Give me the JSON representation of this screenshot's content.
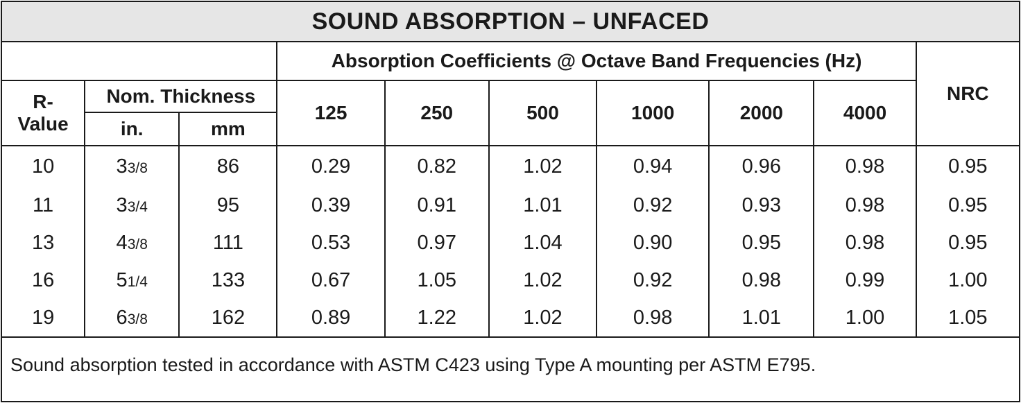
{
  "title": "SOUND ABSORPTION – UNFACED",
  "header": {
    "absorption_group": "Absorption Coefficients @ Octave Band Frequencies (Hz)",
    "r_value": [
      "R-",
      "Value"
    ],
    "nom_thickness": "Nom. Thickness",
    "in": "in.",
    "mm": "mm",
    "frequencies": [
      "125",
      "250",
      "500",
      "1000",
      "2000",
      "4000"
    ],
    "nrc": "NRC"
  },
  "rows": [
    {
      "r": "10",
      "in_whole": "3",
      "in_frac": "3/8",
      "mm": "86",
      "vals": [
        "0.29",
        "0.82",
        "1.02",
        "0.94",
        "0.96",
        "0.98"
      ],
      "nrc": "0.95"
    },
    {
      "r": "11",
      "in_whole": "3",
      "in_frac": "3/4",
      "mm": "95",
      "vals": [
        "0.39",
        "0.91",
        "1.01",
        "0.92",
        "0.93",
        "0.98"
      ],
      "nrc": "0.95"
    },
    {
      "r": "13",
      "in_whole": "4",
      "in_frac": "3/8",
      "mm": "111",
      "vals": [
        "0.53",
        "0.97",
        "1.04",
        "0.90",
        "0.95",
        "0.98"
      ],
      "nrc": "0.95"
    },
    {
      "r": "16",
      "in_whole": "5",
      "in_frac": "1/4",
      "mm": "133",
      "vals": [
        "0.67",
        "1.05",
        "1.02",
        "0.92",
        "0.98",
        "0.99"
      ],
      "nrc": "1.00"
    },
    {
      "r": "19",
      "in_whole": "6",
      "in_frac": "3/8",
      "mm": "162",
      "vals": [
        "0.89",
        "1.22",
        "1.02",
        "0.98",
        "1.01",
        "1.00"
      ],
      "nrc": "1.05"
    }
  ],
  "footnote": "Sound absorption tested in accordance with ASTM C423 using Type A mounting per ASTM E795."
}
